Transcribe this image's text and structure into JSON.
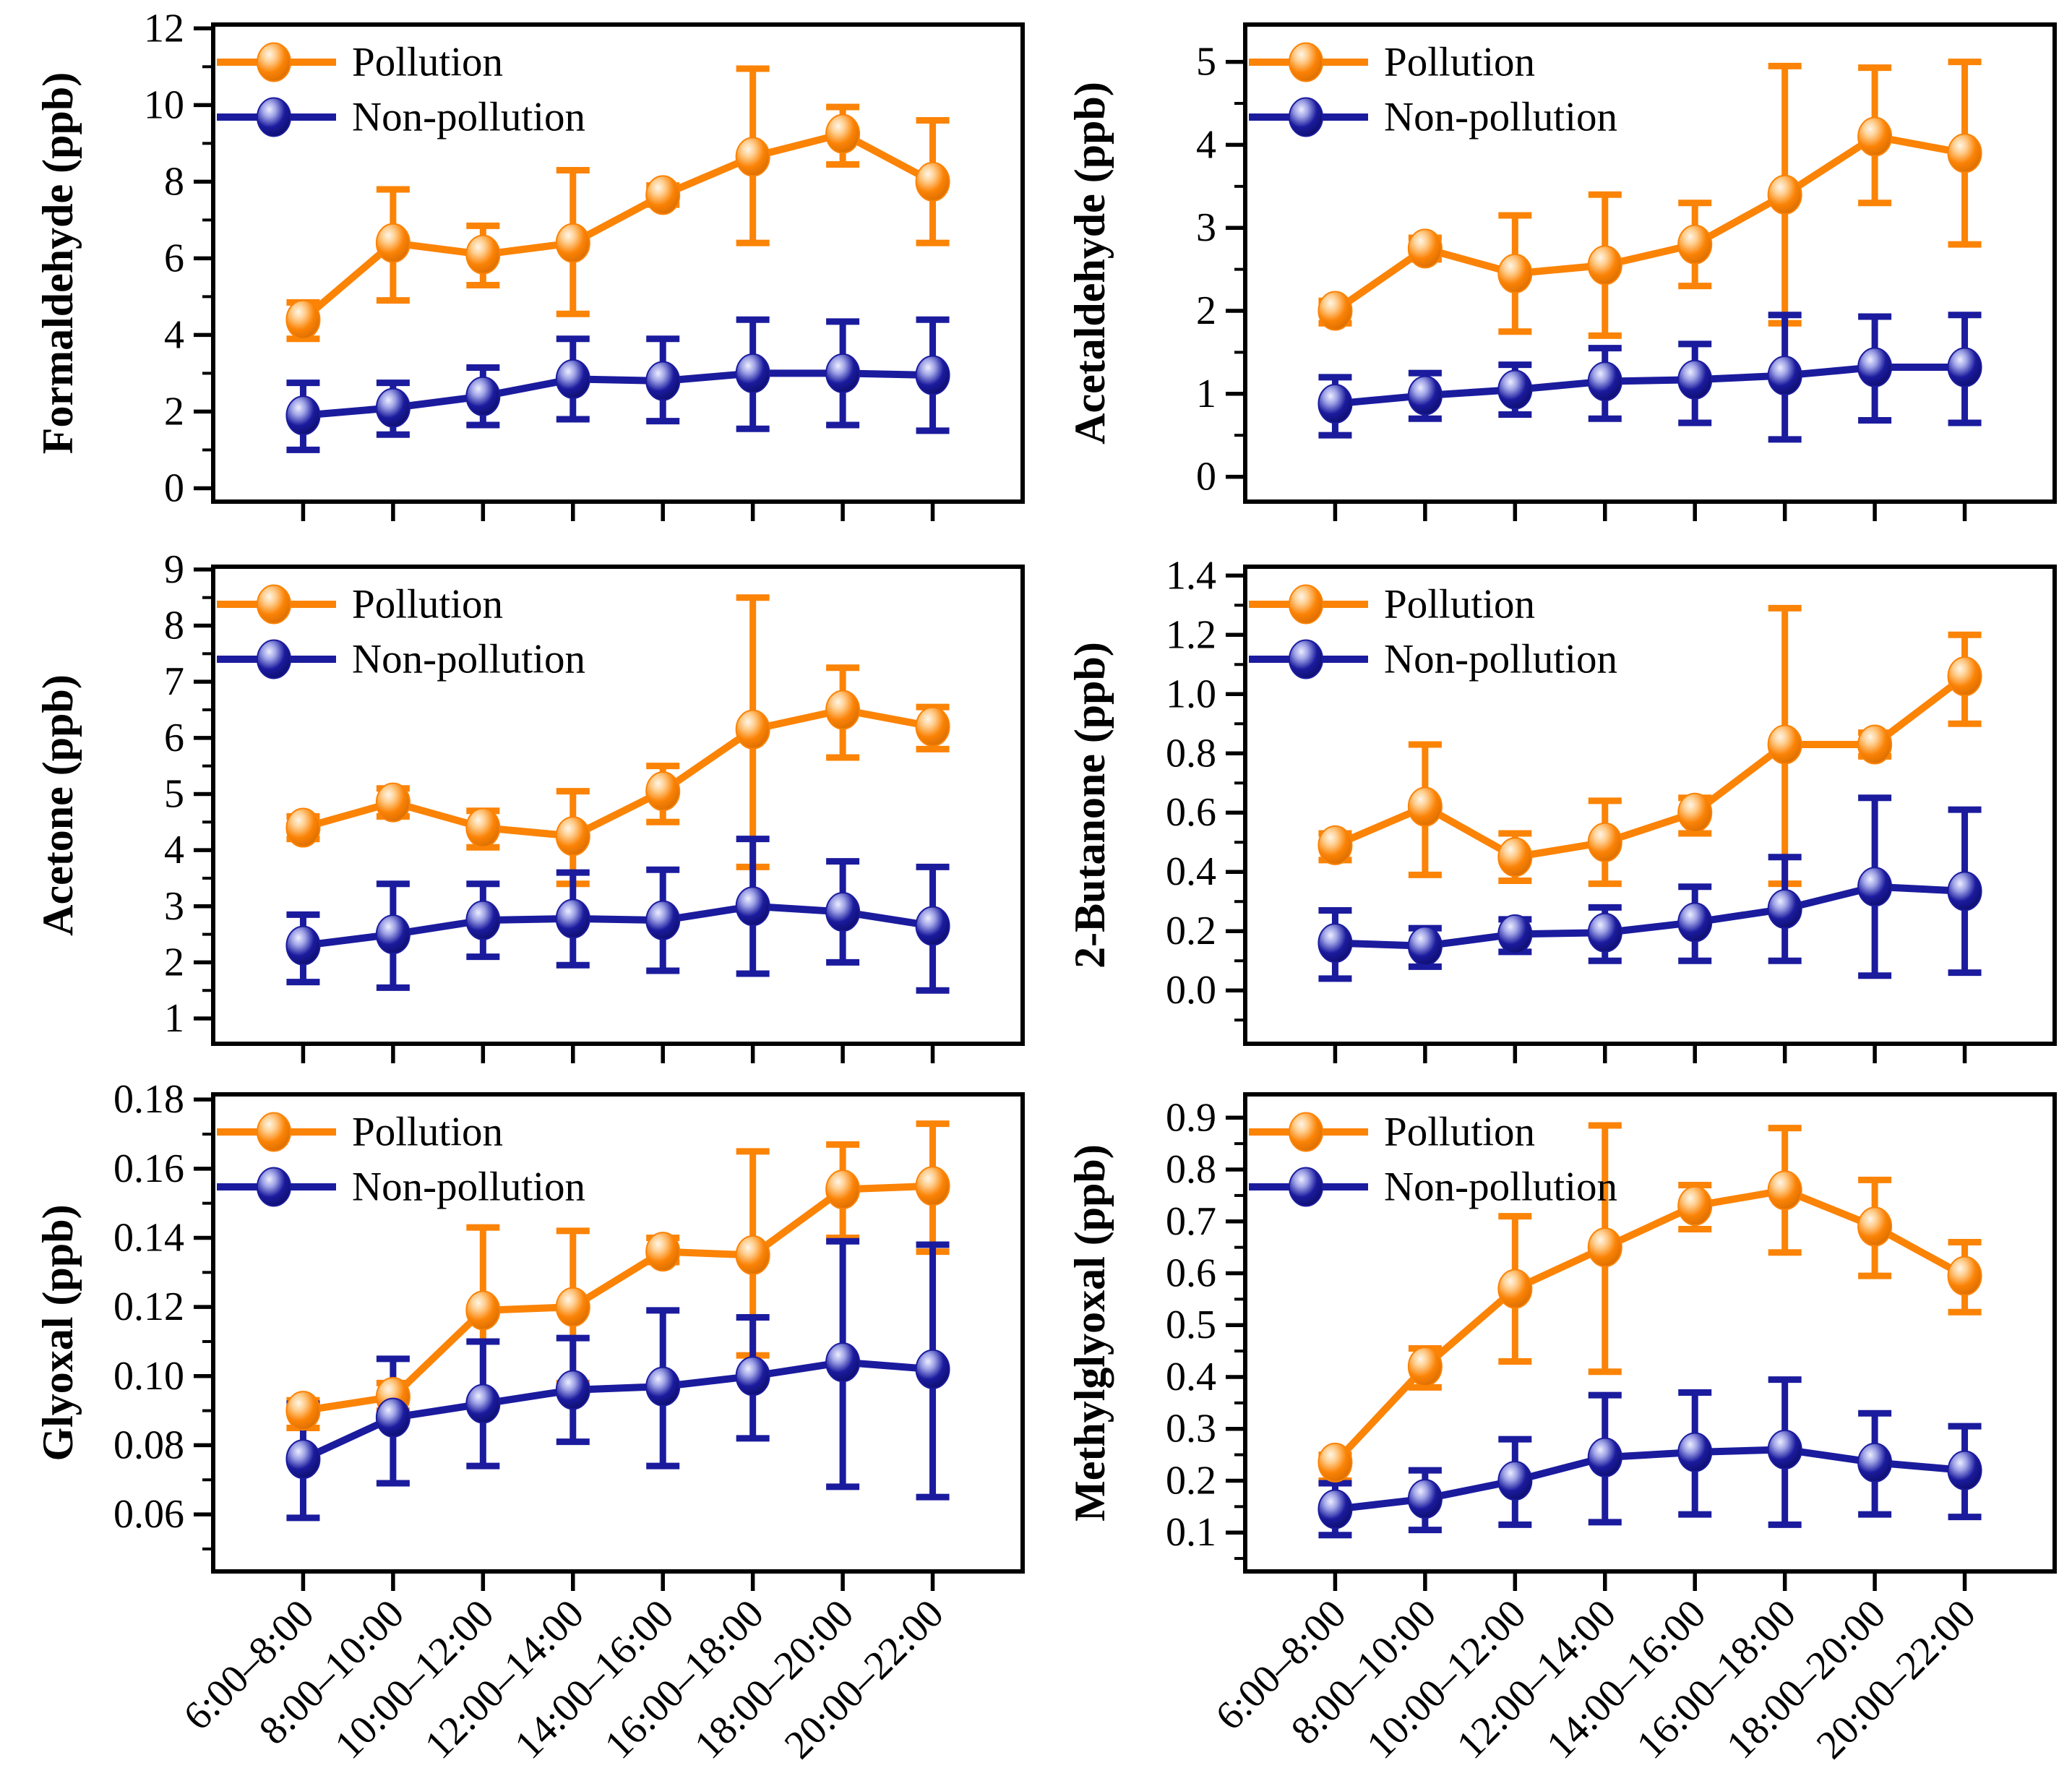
{
  "figure": {
    "legend": [
      "Pollution",
      "Non-pollution"
    ],
    "x_categories": [
      "6:00–8:00",
      "8:00–10:00",
      "10:00–12:00",
      "12:00–14:00",
      "14:00–16:00",
      "16:00–18:00",
      "18:00–20:00",
      "20:00–22:00"
    ]
  },
  "colors": {
    "pollution": {
      "line": "#FB8306",
      "highlight": "#FFF6E8",
      "mid": "#FFCE8F",
      "dark": "#DD6F00"
    },
    "non_pollution": {
      "line": "#1B1B9E",
      "highlight": "#EDEEFF",
      "mid": "#9FA3E6",
      "dark": "#0F0F72"
    },
    "axis": "#000000"
  },
  "chart_data": [
    {
      "type": "line",
      "ylabel": "Formaldehyde (ppb)",
      "ylim": [
        -0.35,
        12.1
      ],
      "yticks": [
        0,
        2,
        4,
        6,
        8,
        10,
        12
      ],
      "ytick_labels": [
        "0",
        "2",
        "4",
        "6",
        "8",
        "10",
        "12"
      ],
      "minor_step": 1,
      "show_x_labels": false,
      "legend_position": "top-left",
      "grid": false,
      "series": [
        {
          "name": "Pollution",
          "color_key": "pollution",
          "values": [
            4.4,
            6.4,
            6.1,
            6.4,
            7.65,
            8.65,
            9.25,
            8.0
          ],
          "err_low": [
            3.9,
            4.9,
            5.3,
            4.55,
            7.4,
            6.4,
            8.45,
            6.4
          ],
          "err_high": [
            4.85,
            7.8,
            6.85,
            8.3,
            7.9,
            10.95,
            9.95,
            9.6
          ]
        },
        {
          "name": "Non-pollution",
          "color_key": "non_pollution",
          "values": [
            1.9,
            2.1,
            2.4,
            2.85,
            2.8,
            3.0,
            3.0,
            2.95
          ],
          "err_low": [
            1.0,
            1.4,
            1.65,
            1.8,
            1.75,
            1.55,
            1.65,
            1.5
          ],
          "err_high": [
            2.75,
            2.75,
            3.15,
            3.9,
            3.9,
            4.4,
            4.35,
            4.4
          ]
        }
      ]
    },
    {
      "type": "line",
      "ylabel": "Acetaldehyde (ppb)",
      "ylim": [
        -0.3,
        5.45
      ],
      "yticks": [
        0,
        1,
        2,
        3,
        4,
        5
      ],
      "ytick_labels": [
        "0",
        "1",
        "2",
        "3",
        "4",
        "5"
      ],
      "minor_step": 0.5,
      "show_x_labels": false,
      "legend_position": "top-left",
      "grid": false,
      "series": [
        {
          "name": "Pollution",
          "color_key": "pollution",
          "values": [
            2.0,
            2.75,
            2.45,
            2.55,
            2.8,
            3.4,
            4.1,
            3.9
          ],
          "err_low": [
            1.85,
            2.62,
            1.75,
            1.7,
            2.3,
            1.85,
            3.3,
            2.8
          ],
          "err_high": [
            2.12,
            2.88,
            3.15,
            3.4,
            3.3,
            4.95,
            4.93,
            5.0
          ]
        },
        {
          "name": "Non-pollution",
          "color_key": "non_pollution",
          "values": [
            0.88,
            0.98,
            1.05,
            1.15,
            1.17,
            1.22,
            1.32,
            1.32
          ],
          "err_low": [
            0.5,
            0.7,
            0.75,
            0.7,
            0.65,
            0.45,
            0.68,
            0.65
          ],
          "err_high": [
            1.2,
            1.25,
            1.35,
            1.55,
            1.6,
            1.95,
            1.93,
            1.95
          ]
        }
      ]
    },
    {
      "type": "line",
      "ylabel": "Acetone (ppb)",
      "ylim": [
        0.55,
        9.05
      ],
      "yticks": [
        1,
        2,
        3,
        4,
        5,
        6,
        7,
        8,
        9
      ],
      "ytick_labels": [
        "1",
        "2",
        "3",
        "4",
        "5",
        "6",
        "7",
        "8",
        "9"
      ],
      "minor_step": 0.5,
      "show_x_labels": false,
      "legend_position": "top-left",
      "grid": false,
      "series": [
        {
          "name": "Pollution",
          "color_key": "pollution",
          "values": [
            4.4,
            4.85,
            4.4,
            4.25,
            5.05,
            6.15,
            6.5,
            6.2
          ],
          "err_low": [
            4.2,
            4.6,
            4.05,
            3.4,
            4.5,
            3.7,
            5.65,
            5.8
          ],
          "err_high": [
            4.6,
            5.1,
            4.7,
            5.05,
            5.5,
            8.5,
            7.25,
            6.55
          ]
        },
        {
          "name": "Non-pollution",
          "color_key": "non_pollution",
          "values": [
            2.3,
            2.5,
            2.75,
            2.78,
            2.75,
            3.0,
            2.9,
            2.65
          ],
          "err_low": [
            1.65,
            1.55,
            2.1,
            1.95,
            1.85,
            1.8,
            2.0,
            1.5
          ],
          "err_high": [
            2.85,
            3.4,
            3.4,
            3.6,
            3.65,
            4.2,
            3.8,
            3.7
          ]
        }
      ]
    },
    {
      "type": "line",
      "ylabel": "2-Butanone (ppb)",
      "ylim": [
        -0.18,
        1.43
      ],
      "yticks": [
        0.0,
        0.2,
        0.4,
        0.6,
        0.8,
        1.0,
        1.2,
        1.4
      ],
      "ytick_labels": [
        "0.0",
        "0.2",
        "0.4",
        "0.6",
        "0.8",
        "1.0",
        "1.2",
        "1.4"
      ],
      "minor_step": 0.1,
      "show_x_labels": false,
      "legend_position": "top-left",
      "grid": false,
      "series": [
        {
          "name": "Pollution",
          "color_key": "pollution",
          "values": [
            0.49,
            0.62,
            0.45,
            0.5,
            0.6,
            0.83,
            0.83,
            1.06
          ],
          "err_low": [
            0.44,
            0.39,
            0.37,
            0.36,
            0.53,
            0.36,
            0.79,
            0.9
          ],
          "err_high": [
            0.53,
            0.83,
            0.53,
            0.64,
            0.65,
            1.29,
            0.87,
            1.2
          ]
        },
        {
          "name": "Non-pollution",
          "color_key": "non_pollution",
          "values": [
            0.16,
            0.15,
            0.19,
            0.195,
            0.23,
            0.275,
            0.35,
            0.335
          ],
          "err_low": [
            0.04,
            0.08,
            0.13,
            0.1,
            0.1,
            0.1,
            0.05,
            0.06
          ],
          "err_high": [
            0.27,
            0.21,
            0.24,
            0.28,
            0.35,
            0.45,
            0.65,
            0.61
          ]
        }
      ]
    },
    {
      "type": "line",
      "ylabel": "Glyoxal (ppb)",
      "ylim": [
        0.0435,
        0.1815
      ],
      "yticks": [
        0.06,
        0.08,
        0.1,
        0.12,
        0.14,
        0.16,
        0.18
      ],
      "ytick_labels": [
        "0.06",
        "0.08",
        "0.10",
        "0.12",
        "0.14",
        "0.16",
        "0.18"
      ],
      "minor_step": 0.01,
      "show_x_labels": true,
      "legend_position": "top-left",
      "grid": false,
      "series": [
        {
          "name": "Pollution",
          "color_key": "pollution",
          "values": [
            0.09,
            0.094,
            0.119,
            0.12,
            0.136,
            0.135,
            0.154,
            0.155
          ],
          "err_low": [
            0.085,
            0.09,
            0.093,
            0.098,
            0.133,
            0.106,
            0.14,
            0.136
          ],
          "err_high": [
            0.093,
            0.098,
            0.143,
            0.142,
            0.14,
            0.165,
            0.167,
            0.173
          ]
        },
        {
          "name": "Non-pollution",
          "color_key": "non_pollution",
          "values": [
            0.076,
            0.088,
            0.092,
            0.096,
            0.097,
            0.1,
            0.104,
            0.102
          ],
          "err_low": [
            0.059,
            0.069,
            0.074,
            0.081,
            0.074,
            0.082,
            0.068,
            0.065
          ],
          "err_high": [
            0.092,
            0.105,
            0.11,
            0.111,
            0.119,
            0.117,
            0.139,
            0.138
          ]
        }
      ]
    },
    {
      "type": "line",
      "ylabel": "Methylglyoxal (ppb)",
      "ylim": [
        0.025,
        0.945
      ],
      "yticks": [
        0.1,
        0.2,
        0.3,
        0.4,
        0.5,
        0.6,
        0.7,
        0.8,
        0.9
      ],
      "ytick_labels": [
        "0.1",
        "0.2",
        "0.3",
        "0.4",
        "0.5",
        "0.6",
        "0.7",
        "0.8",
        "0.9"
      ],
      "minor_step": 0.05,
      "show_x_labels": true,
      "legend_position": "top-left",
      "grid": false,
      "series": [
        {
          "name": "Pollution",
          "color_key": "pollution",
          "values": [
            0.235,
            0.42,
            0.57,
            0.65,
            0.73,
            0.76,
            0.69,
            0.595
          ],
          "err_low": [
            0.2,
            0.38,
            0.43,
            0.41,
            0.685,
            0.64,
            0.595,
            0.525
          ],
          "err_high": [
            0.25,
            0.455,
            0.71,
            0.885,
            0.77,
            0.88,
            0.78,
            0.66
          ]
        },
        {
          "name": "Non-pollution",
          "color_key": "non_pollution",
          "values": [
            0.145,
            0.165,
            0.2,
            0.245,
            0.255,
            0.26,
            0.235,
            0.22
          ],
          "err_low": [
            0.095,
            0.105,
            0.115,
            0.12,
            0.135,
            0.115,
            0.135,
            0.13
          ],
          "err_high": [
            0.195,
            0.22,
            0.28,
            0.365,
            0.37,
            0.395,
            0.33,
            0.305
          ]
        }
      ]
    }
  ]
}
